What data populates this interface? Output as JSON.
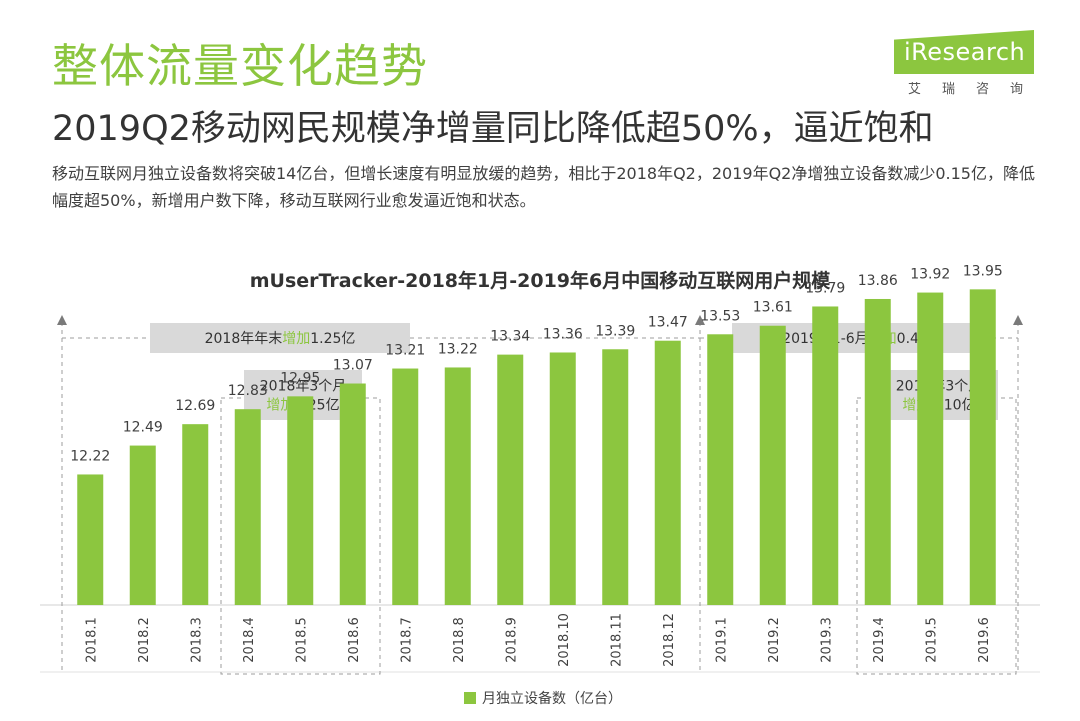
{
  "header": {
    "heading": "整体流量变化趋势",
    "subheading": "2019Q2移动网民规模净增量同比降低超50%，逼近饱和",
    "description": "移动互联网月独立设备数将突破14亿台，但增长速度有明显放缓的趋势，相比于2018年Q2，2019年Q2净增独立设备数减少0.15亿，降低幅度超50%，新增用户数下降，移动互联网行业愈发逼近饱和状态。"
  },
  "logo": {
    "brand": "iResearch",
    "sub": "艾瑞咨询"
  },
  "colors": {
    "accent": "#8cc63f",
    "annotation_box": "#d9d9d9",
    "dashed_line": "#9e9e9e"
  },
  "chart_data": {
    "type": "bar",
    "title": "mUserTracker-2018年1月-2019年6月中国移动互联网用户规模",
    "categories": [
      "2018.1",
      "2018.2",
      "2018.3",
      "2018.4",
      "2018.5",
      "2018.6",
      "2018.7",
      "2018.8",
      "2018.9",
      "2018.10",
      "2018.11",
      "2018.12",
      "2019.1",
      "2019.2",
      "2019.3",
      "2019.4",
      "2019.5",
      "2019.6"
    ],
    "series": [
      {
        "name": "月独立设备数（亿台）",
        "values": [
          12.22,
          12.49,
          12.69,
          12.83,
          12.95,
          13.07,
          13.21,
          13.22,
          13.34,
          13.36,
          13.39,
          13.47,
          13.53,
          13.61,
          13.79,
          13.86,
          13.92,
          13.95
        ]
      }
    ],
    "legend": "bottom-center",
    "annotations": [
      {
        "label_parts": [
          "2018年年末",
          "增加",
          "1.25亿"
        ],
        "range": [
          "2018.1",
          "2018.12"
        ],
        "kind": "period"
      },
      {
        "label_parts": [
          "2019年1-6月",
          "增加",
          "0.43亿"
        ],
        "range": [
          "2019.1",
          "2019.6"
        ],
        "kind": "period"
      },
      {
        "label_lines": [
          [
            "2018年3个月"
          ],
          [
            "增加",
            "0.25亿"
          ]
        ],
        "range": [
          "2018.4",
          "2018.6"
        ],
        "kind": "quarter"
      },
      {
        "label_lines": [
          [
            "2019年3个月"
          ],
          [
            "增加",
            "0.10亿"
          ]
        ],
        "range": [
          "2019.4",
          "2019.6"
        ],
        "kind": "quarter"
      }
    ]
  }
}
